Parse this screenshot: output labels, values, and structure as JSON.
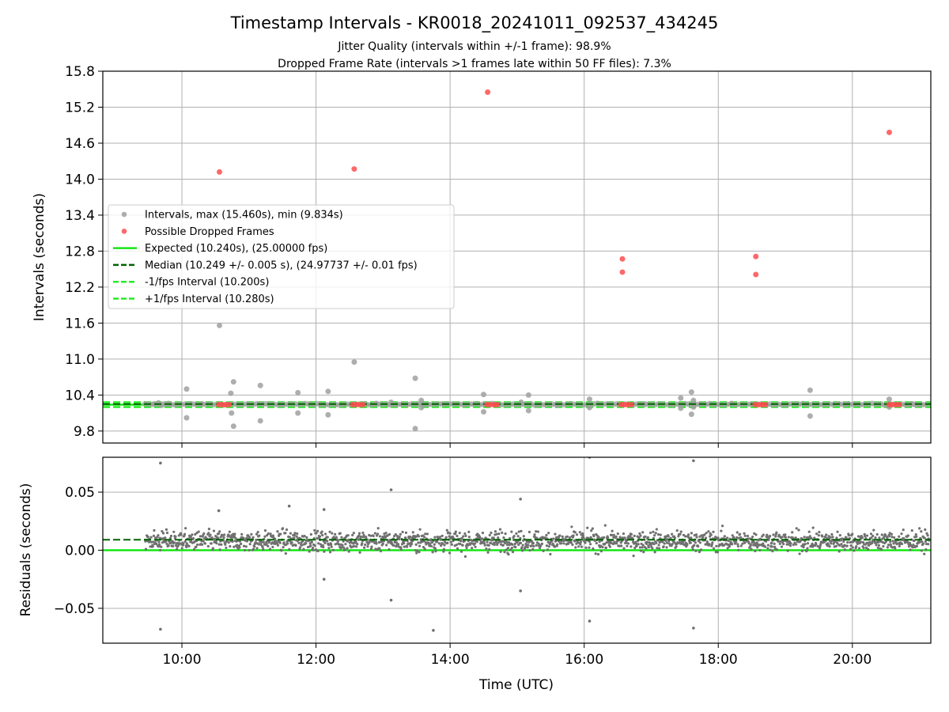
{
  "figure": {
    "title": "Timestamp Intervals - KR0018_20241011_092537_434245",
    "subtitle_1": "Jitter Quality (intervals within +/-1 frame): 98.9%",
    "subtitle_2": "Dropped Frame Rate (intervals >1 frames late within 50 FF files): 7.3%",
    "xlabel": "Time (UTC)"
  },
  "colors": {
    "interval": "#a0a0a0",
    "dropped": "#ff4d4d",
    "expected": "#14e614",
    "median": "#006400",
    "fps_band": "#22ee22",
    "residual": "#707070",
    "grid": "#b0b0b0"
  },
  "chart_data": [
    {
      "type": "scatter",
      "ylabel": "Intervals (seconds)",
      "x_unit": "hours UTC",
      "xlim": [
        8.82,
        21.17
      ],
      "ylim": [
        9.6,
        15.8
      ],
      "yticks": [
        "9.8",
        "10.4",
        "11.0",
        "11.6",
        "12.2",
        "12.8",
        "13.4",
        "14.0",
        "14.6",
        "15.2",
        "15.8"
      ],
      "xticks": [
        "10:00",
        "12:00",
        "14:00",
        "16:00",
        "18:00",
        "20:00"
      ],
      "grid": true,
      "legend_position": "center-left",
      "legend": [
        "Intervals, max (15.460s), min (9.834s)",
        "Possible Dropped Frames",
        "Expected (10.240s), (25.00000 fps)",
        "Median (10.249 +/- 0.005 s), (24.97737 +/- 0.01 fps)",
        "-1/fps Interval (10.200s)",
        "+1/fps Interval (10.280s)"
      ],
      "lines": {
        "expected": 10.24,
        "median": 10.249,
        "minus_1fps": 10.2,
        "plus_1fps": 10.28
      },
      "series": [
        {
          "name": "Intervals, max (15.460s), min (9.834s)",
          "points": [
            [
              9.58,
              10.25
            ],
            [
              9.65,
              10.27
            ],
            [
              9.7,
              10.23
            ],
            [
              9.8,
              10.26
            ],
            [
              10.07,
              10.5
            ],
            [
              10.07,
              10.02
            ],
            [
              10.56,
              11.56
            ],
            [
              10.73,
              10.43
            ],
            [
              10.74,
              10.1
            ],
            [
              10.77,
              10.62
            ],
            [
              10.77,
              9.88
            ],
            [
              11.17,
              10.56
            ],
            [
              11.17,
              9.97
            ],
            [
              11.73,
              10.44
            ],
            [
              11.73,
              10.1
            ],
            [
              12.18,
              10.46
            ],
            [
              12.18,
              10.07
            ],
            [
              12.57,
              10.95
            ],
            [
              13.12,
              10.28
            ],
            [
              13.48,
              10.68
            ],
            [
              13.48,
              9.84
            ],
            [
              13.57,
              10.31
            ],
            [
              13.57,
              10.19
            ],
            [
              14.5,
              10.41
            ],
            [
              14.5,
              10.12
            ],
            [
              15.17,
              10.4
            ],
            [
              15.17,
              10.14
            ],
            [
              15.06,
              10.28
            ],
            [
              16.08,
              10.33
            ],
            [
              16.08,
              10.19
            ],
            [
              17.44,
              10.35
            ],
            [
              17.44,
              10.18
            ],
            [
              17.6,
              10.45
            ],
            [
              17.6,
              10.08
            ],
            [
              17.63,
              10.31
            ],
            [
              17.63,
              10.2
            ],
            [
              19.37,
              10.48
            ],
            [
              19.37,
              10.05
            ],
            [
              20.55,
              10.33
            ],
            [
              20.55,
              10.2
            ],
            [
              10.3,
              10.25
            ],
            [
              11.5,
              10.24
            ],
            [
              12.9,
              10.26
            ],
            [
              13.9,
              10.25
            ],
            [
              15.6,
              10.23
            ],
            [
              16.9,
              10.25
            ],
            [
              18.2,
              10.26
            ],
            [
              19.9,
              10.24
            ],
            [
              20.9,
              10.25
            ]
          ]
        },
        {
          "name": "Possible Dropped Frames",
          "points": [
            [
              10.56,
              14.12
            ],
            [
              12.57,
              14.17
            ],
            [
              14.56,
              15.45
            ],
            [
              16.57,
              12.67
            ],
            [
              16.57,
              12.45
            ],
            [
              18.56,
              12.71
            ],
            [
              18.56,
              12.41
            ],
            [
              20.55,
              14.78
            ],
            [
              10.55,
              10.24
            ],
            [
              10.6,
              10.24
            ],
            [
              10.65,
              10.24
            ],
            [
              10.7,
              10.24
            ],
            [
              12.55,
              10.24
            ],
            [
              12.6,
              10.24
            ],
            [
              12.65,
              10.24
            ],
            [
              12.7,
              10.24
            ],
            [
              14.55,
              10.24
            ],
            [
              14.6,
              10.24
            ],
            [
              14.65,
              10.24
            ],
            [
              14.7,
              10.24
            ],
            [
              16.55,
              10.24
            ],
            [
              16.6,
              10.24
            ],
            [
              16.65,
              10.24
            ],
            [
              16.7,
              10.24
            ],
            [
              18.55,
              10.24
            ],
            [
              18.6,
              10.24
            ],
            [
              18.65,
              10.24
            ],
            [
              18.7,
              10.24
            ],
            [
              20.55,
              10.24
            ],
            [
              20.6,
              10.24
            ],
            [
              20.65,
              10.24
            ],
            [
              20.7,
              10.24
            ]
          ]
        }
      ]
    },
    {
      "type": "scatter",
      "ylabel": "Residuals (seconds)",
      "x_unit": "hours UTC",
      "xlim": [
        8.82,
        21.17
      ],
      "ylim": [
        -0.08,
        0.08
      ],
      "yticks": [
        "−0.05",
        "0.00",
        "0.05"
      ],
      "ytick_values": [
        -0.05,
        0.0,
        0.05
      ],
      "xticks": [
        "10:00",
        "12:00",
        "14:00",
        "16:00",
        "18:00",
        "20:00"
      ],
      "grid": true,
      "lines": {
        "expected": 0.0,
        "median": 0.009
      },
      "x_range": [
        9.45,
        21.15
      ],
      "residual_spread": 0.01,
      "outliers": [
        [
          9.68,
          0.075
        ],
        [
          9.68,
          -0.068
        ],
        [
          13.12,
          0.052
        ],
        [
          13.12,
          -0.043
        ],
        [
          13.75,
          -0.069
        ],
        [
          15.05,
          0.044
        ],
        [
          15.05,
          -0.035
        ],
        [
          16.08,
          0.08
        ],
        [
          16.08,
          -0.061
        ],
        [
          17.63,
          0.077
        ],
        [
          17.63,
          -0.067
        ],
        [
          12.12,
          0.035
        ],
        [
          12.12,
          -0.025
        ],
        [
          11.6,
          0.038
        ],
        [
          10.55,
          0.034
        ]
      ]
    }
  ]
}
